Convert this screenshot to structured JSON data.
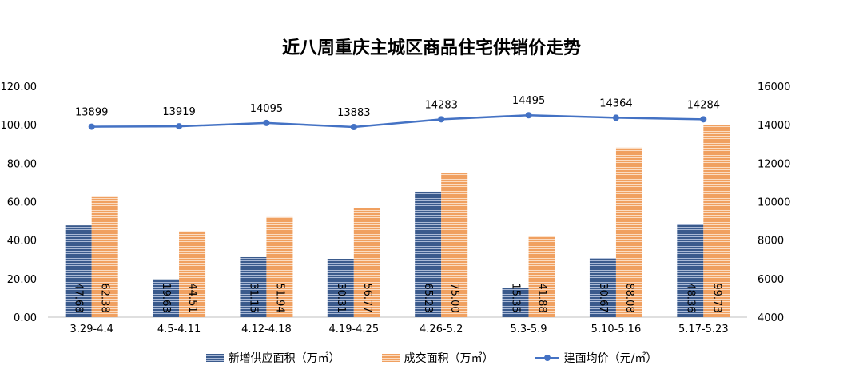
{
  "chart_data": {
    "type": "bar",
    "title": "近八周重庆主城区商品住宅供销价走势",
    "categories": [
      "3.29-4.4",
      "4.5-4.11",
      "4.12-4.18",
      "4.19-4.25",
      "4.26-5.2",
      "5.3-5.9",
      "5.10-5.16",
      "5.17-5.23"
    ],
    "series": [
      {
        "name": "新增供应面积（万㎡）",
        "type": "bar",
        "axis": "left",
        "color": "#44546A",
        "values": [
          47.68,
          19.63,
          31.15,
          30.31,
          65.23,
          15.35,
          30.67,
          48.36
        ],
        "labels": [
          "47.68",
          "19.63",
          "31.15",
          "30.31",
          "65.23",
          "15.35",
          "30.67",
          "48.36"
        ]
      },
      {
        "name": "成交面积（万㎡）",
        "type": "bar",
        "axis": "left",
        "color": "#ED7D31",
        "values": [
          62.38,
          44.51,
          51.94,
          56.77,
          75.0,
          41.88,
          88.08,
          99.73
        ],
        "labels": [
          "62.38",
          "44.51",
          "51.94",
          "56.77",
          "75.00",
          "41.88",
          "88.08",
          "99.73"
        ]
      },
      {
        "name": "建面均价（元/㎡）",
        "type": "line",
        "axis": "right",
        "color": "#4472C4",
        "values": [
          13899,
          13919,
          14095,
          13883,
          14283,
          14495,
          14364,
          14284
        ],
        "labels": [
          "13899",
          "13919",
          "14095",
          "13883",
          "14283",
          "14495",
          "14364",
          "14284"
        ]
      }
    ],
    "y_left": {
      "range": [
        0,
        120
      ],
      "ticks": [
        "0.00",
        "20.00",
        "40.00",
        "60.00",
        "80.00",
        "100.00",
        "120.00"
      ]
    },
    "y_right": {
      "range": [
        4000,
        16000
      ],
      "ticks": [
        "4000",
        "6000",
        "8000",
        "10000",
        "12000",
        "14000",
        "16000"
      ]
    },
    "grid": false,
    "legend_position": "bottom"
  }
}
